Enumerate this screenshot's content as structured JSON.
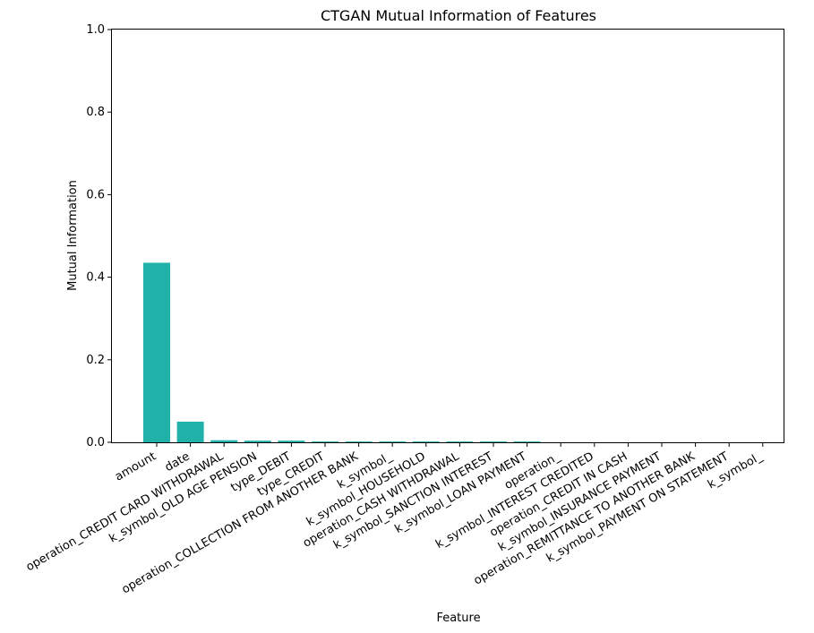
{
  "chart_data": {
    "type": "bar",
    "title": "CTGAN Mutual Information of Features",
    "xlabel": "Feature",
    "ylabel": "Mutual Information",
    "ylim": [
      0,
      1.0
    ],
    "yticks": [
      "0.0",
      "0.2",
      "0.4",
      "0.6",
      "0.8",
      "1.0"
    ],
    "grid": false,
    "bar_color": "#20b2aa",
    "categories": [
      "amount",
      "date",
      "operation_CREDIT CARD WITHDRAWAL",
      "k_symbol_OLD AGE PENSION",
      "type_DEBIT",
      "type_CREDIT",
      "operation_COLLECTION FROM ANOTHER BANK",
      "k_symbol_",
      "k_symbol_HOUSEHOLD",
      "operation_CASH WITHDRAWAL",
      "k_symbol_SANCTION INTEREST",
      "k_symbol_LOAN PAYMENT",
      "operation_",
      "k_symbol_INTEREST CREDITED",
      "operation_CREDIT IN CASH",
      "k_symbol_INSURANCE PAYMENT",
      "operation_REMITTANCE TO ANOTHER BANK",
      "k_symbol_PAYMENT ON STATEMENT",
      "k_symbol_"
    ],
    "values": [
      0.435,
      0.05,
      0.005,
      0.004,
      0.004,
      0.002,
      0.002,
      0.002,
      0.002,
      0.002,
      0.002,
      0.002,
      0.0,
      0.0,
      0.0,
      0.0,
      0.0,
      0.0,
      0.0
    ]
  }
}
